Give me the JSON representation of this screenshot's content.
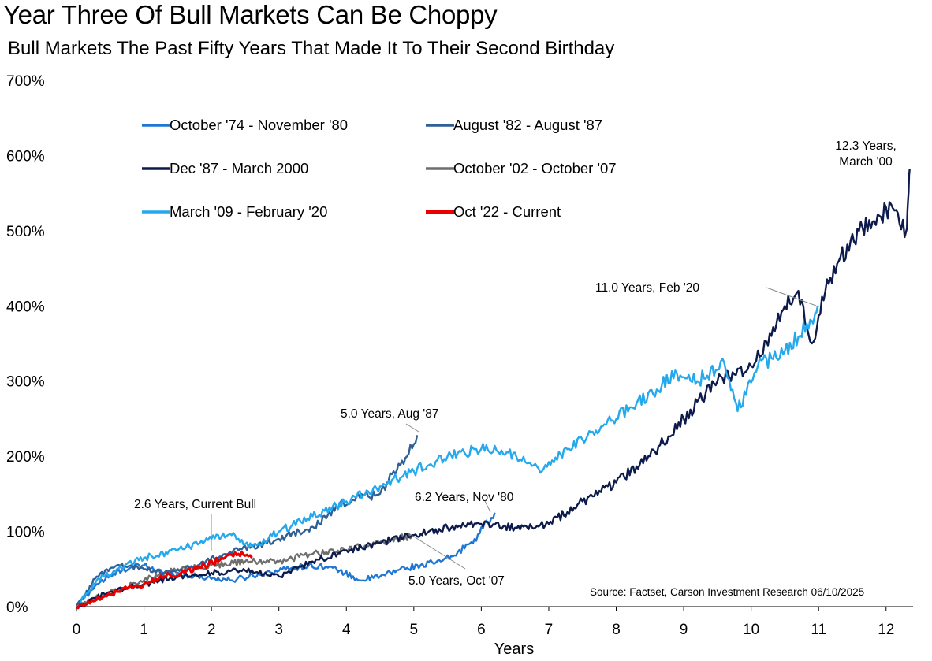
{
  "chart_data": {
    "type": "line",
    "title": "Year Three Of Bull Markets Can Be Choppy",
    "subtitle": "Bull Markets The Past Fifty Years That Made It To Their Second Birthday",
    "xlabel": "Years",
    "ylabel": "",
    "xlim": [
      0,
      12.4
    ],
    "ylim": [
      0,
      700
    ],
    "x_ticks": [
      "0",
      "1",
      "2",
      "3",
      "4",
      "5",
      "6",
      "7",
      "8",
      "9",
      "10",
      "11",
      "12"
    ],
    "y_ticks": [
      "0%",
      "100%",
      "200%",
      "300%",
      "400%",
      "500%",
      "600%",
      "700%"
    ],
    "grid": false,
    "legend_position": "top-left",
    "series": [
      {
        "name": "October '74 - November '80",
        "color": "#1f77d4",
        "points": [
          [
            0,
            0
          ],
          [
            0.3,
            30
          ],
          [
            0.7,
            50
          ],
          [
            1.0,
            55
          ],
          [
            1.3,
            45
          ],
          [
            1.8,
            40
          ],
          [
            2.3,
            35
          ],
          [
            2.8,
            45
          ],
          [
            3.2,
            52
          ],
          [
            3.6,
            55
          ],
          [
            3.9,
            48
          ],
          [
            4.2,
            35
          ],
          [
            4.5,
            40
          ],
          [
            4.8,
            50
          ],
          [
            5.1,
            55
          ],
          [
            5.4,
            60
          ],
          [
            5.6,
            68
          ],
          [
            5.9,
            90
          ],
          [
            6.2,
            125
          ]
        ]
      },
      {
        "name": "August '82 - August '87",
        "color": "#2e5f96",
        "points": [
          [
            0,
            0
          ],
          [
            0.3,
            40
          ],
          [
            0.6,
            55
          ],
          [
            1.0,
            50
          ],
          [
            1.4,
            45
          ],
          [
            1.8,
            55
          ],
          [
            2.2,
            70
          ],
          [
            2.6,
            80
          ],
          [
            3.0,
            90
          ],
          [
            3.3,
            100
          ],
          [
            3.6,
            110
          ],
          [
            3.9,
            135
          ],
          [
            4.2,
            145
          ],
          [
            4.5,
            150
          ],
          [
            4.7,
            180
          ],
          [
            4.9,
            200
          ],
          [
            5.05,
            228
          ]
        ]
      },
      {
        "name": "Dec '87 - March 2000",
        "color": "#0d1b4c",
        "points": [
          [
            0,
            0
          ],
          [
            0.5,
            20
          ],
          [
            1.0,
            30
          ],
          [
            1.5,
            40
          ],
          [
            2.0,
            45
          ],
          [
            2.5,
            48
          ],
          [
            3.0,
            40
          ],
          [
            3.5,
            60
          ],
          [
            4.0,
            75
          ],
          [
            4.5,
            85
          ],
          [
            5.0,
            95
          ],
          [
            5.5,
            105
          ],
          [
            6.0,
            110
          ],
          [
            6.5,
            105
          ],
          [
            7.0,
            110
          ],
          [
            7.5,
            140
          ],
          [
            8.0,
            165
          ],
          [
            8.5,
            200
          ],
          [
            9.0,
            250
          ],
          [
            9.5,
            300
          ],
          [
            10.0,
            320
          ],
          [
            10.3,
            360
          ],
          [
            10.5,
            400
          ],
          [
            10.7,
            420
          ],
          [
            10.9,
            350
          ],
          [
            11.1,
            420
          ],
          [
            11.3,
            460
          ],
          [
            11.6,
            500
          ],
          [
            11.9,
            520
          ],
          [
            12.1,
            530
          ],
          [
            12.3,
            500
          ],
          [
            12.35,
            582
          ]
        ]
      },
      {
        "name": "October '02 - October '07",
        "color": "#6e6e6e",
        "points": [
          [
            0,
            0
          ],
          [
            0.5,
            20
          ],
          [
            1.0,
            35
          ],
          [
            1.5,
            50
          ],
          [
            2.0,
            55
          ],
          [
            2.5,
            60
          ],
          [
            3.0,
            60
          ],
          [
            3.5,
            70
          ],
          [
            4.0,
            75
          ],
          [
            4.5,
            85
          ],
          [
            5.0,
            95
          ]
        ]
      },
      {
        "name": "March '09 - February '20",
        "color": "#25a9ec",
        "points": [
          [
            0,
            0
          ],
          [
            0.3,
            35
          ],
          [
            0.6,
            50
          ],
          [
            1.0,
            65
          ],
          [
            1.5,
            75
          ],
          [
            2.0,
            90
          ],
          [
            2.3,
            95
          ],
          [
            2.6,
            80
          ],
          [
            3.0,
            100
          ],
          [
            3.5,
            120
          ],
          [
            4.0,
            140
          ],
          [
            4.5,
            160
          ],
          [
            5.0,
            180
          ],
          [
            5.5,
            200
          ],
          [
            6.0,
            210
          ],
          [
            6.4,
            205
          ],
          [
            6.9,
            180
          ],
          [
            7.3,
            210
          ],
          [
            7.8,
            240
          ],
          [
            8.3,
            270
          ],
          [
            8.9,
            310
          ],
          [
            9.2,
            300
          ],
          [
            9.6,
            325
          ],
          [
            9.8,
            260
          ],
          [
            10.1,
            320
          ],
          [
            10.5,
            340
          ],
          [
            10.9,
            380
          ],
          [
            11.0,
            400
          ]
        ]
      },
      {
        "name": "Oct '22 - Current",
        "color": "#e80000",
        "points": [
          [
            0,
            0
          ],
          [
            0.3,
            10
          ],
          [
            0.6,
            20
          ],
          [
            1.0,
            30
          ],
          [
            1.3,
            40
          ],
          [
            1.6,
            45
          ],
          [
            1.9,
            55
          ],
          [
            2.2,
            65
          ],
          [
            2.4,
            70
          ],
          [
            2.6,
            65
          ]
        ]
      }
    ],
    "annotations": [
      {
        "text": "12.3 Years,",
        "line2": "March '00"
      },
      {
        "text": "11.0 Years, Feb '20"
      },
      {
        "text": "5.0 Years, Aug '87"
      },
      {
        "text": "6.2 Years, Nov '80"
      },
      {
        "text": "2.6 Years, Current Bull"
      },
      {
        "text": "5.0 Years, Oct '07"
      }
    ],
    "source": "Source: Factset, Carson Investment Research 06/10/2025"
  }
}
